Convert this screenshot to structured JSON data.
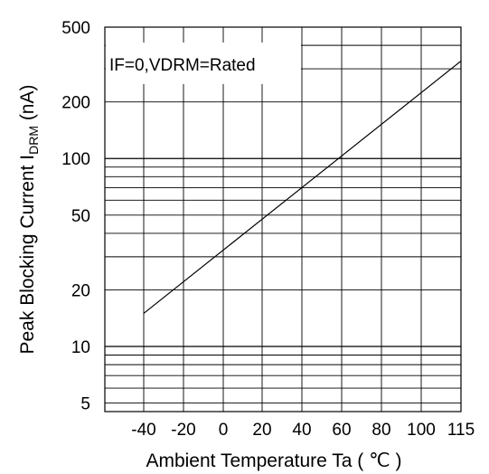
{
  "chart_data": {
    "type": "line",
    "title": "",
    "xlabel": "Ambient Temperature Ta ( ℃ )",
    "ylabel": {
      "main": "Peak Blocking Current I",
      "sub": "DRM",
      "unit": " (nA)"
    },
    "annotation": "IF=0,VDRM=Rated",
    "x_ticks": [
      "-40",
      "-20",
      "0",
      "20",
      "40",
      "60",
      "80",
      "100",
      "115"
    ],
    "x_tick_values": [
      -40,
      -20,
      0,
      20,
      40,
      60,
      80,
      100,
      115
    ],
    "y_ticks": [
      "5",
      "10",
      "20",
      "50",
      "100",
      "200",
      "500"
    ],
    "y_tick_values": [
      5,
      10,
      20,
      50,
      100,
      200,
      500
    ],
    "y_scale": "log",
    "xlim": [
      -60,
      115
    ],
    "ylim": [
      4,
      500
    ],
    "grid": true,
    "series": [
      {
        "x": [
          -40,
          115
        ],
        "y": [
          15,
          330
        ]
      }
    ]
  }
}
